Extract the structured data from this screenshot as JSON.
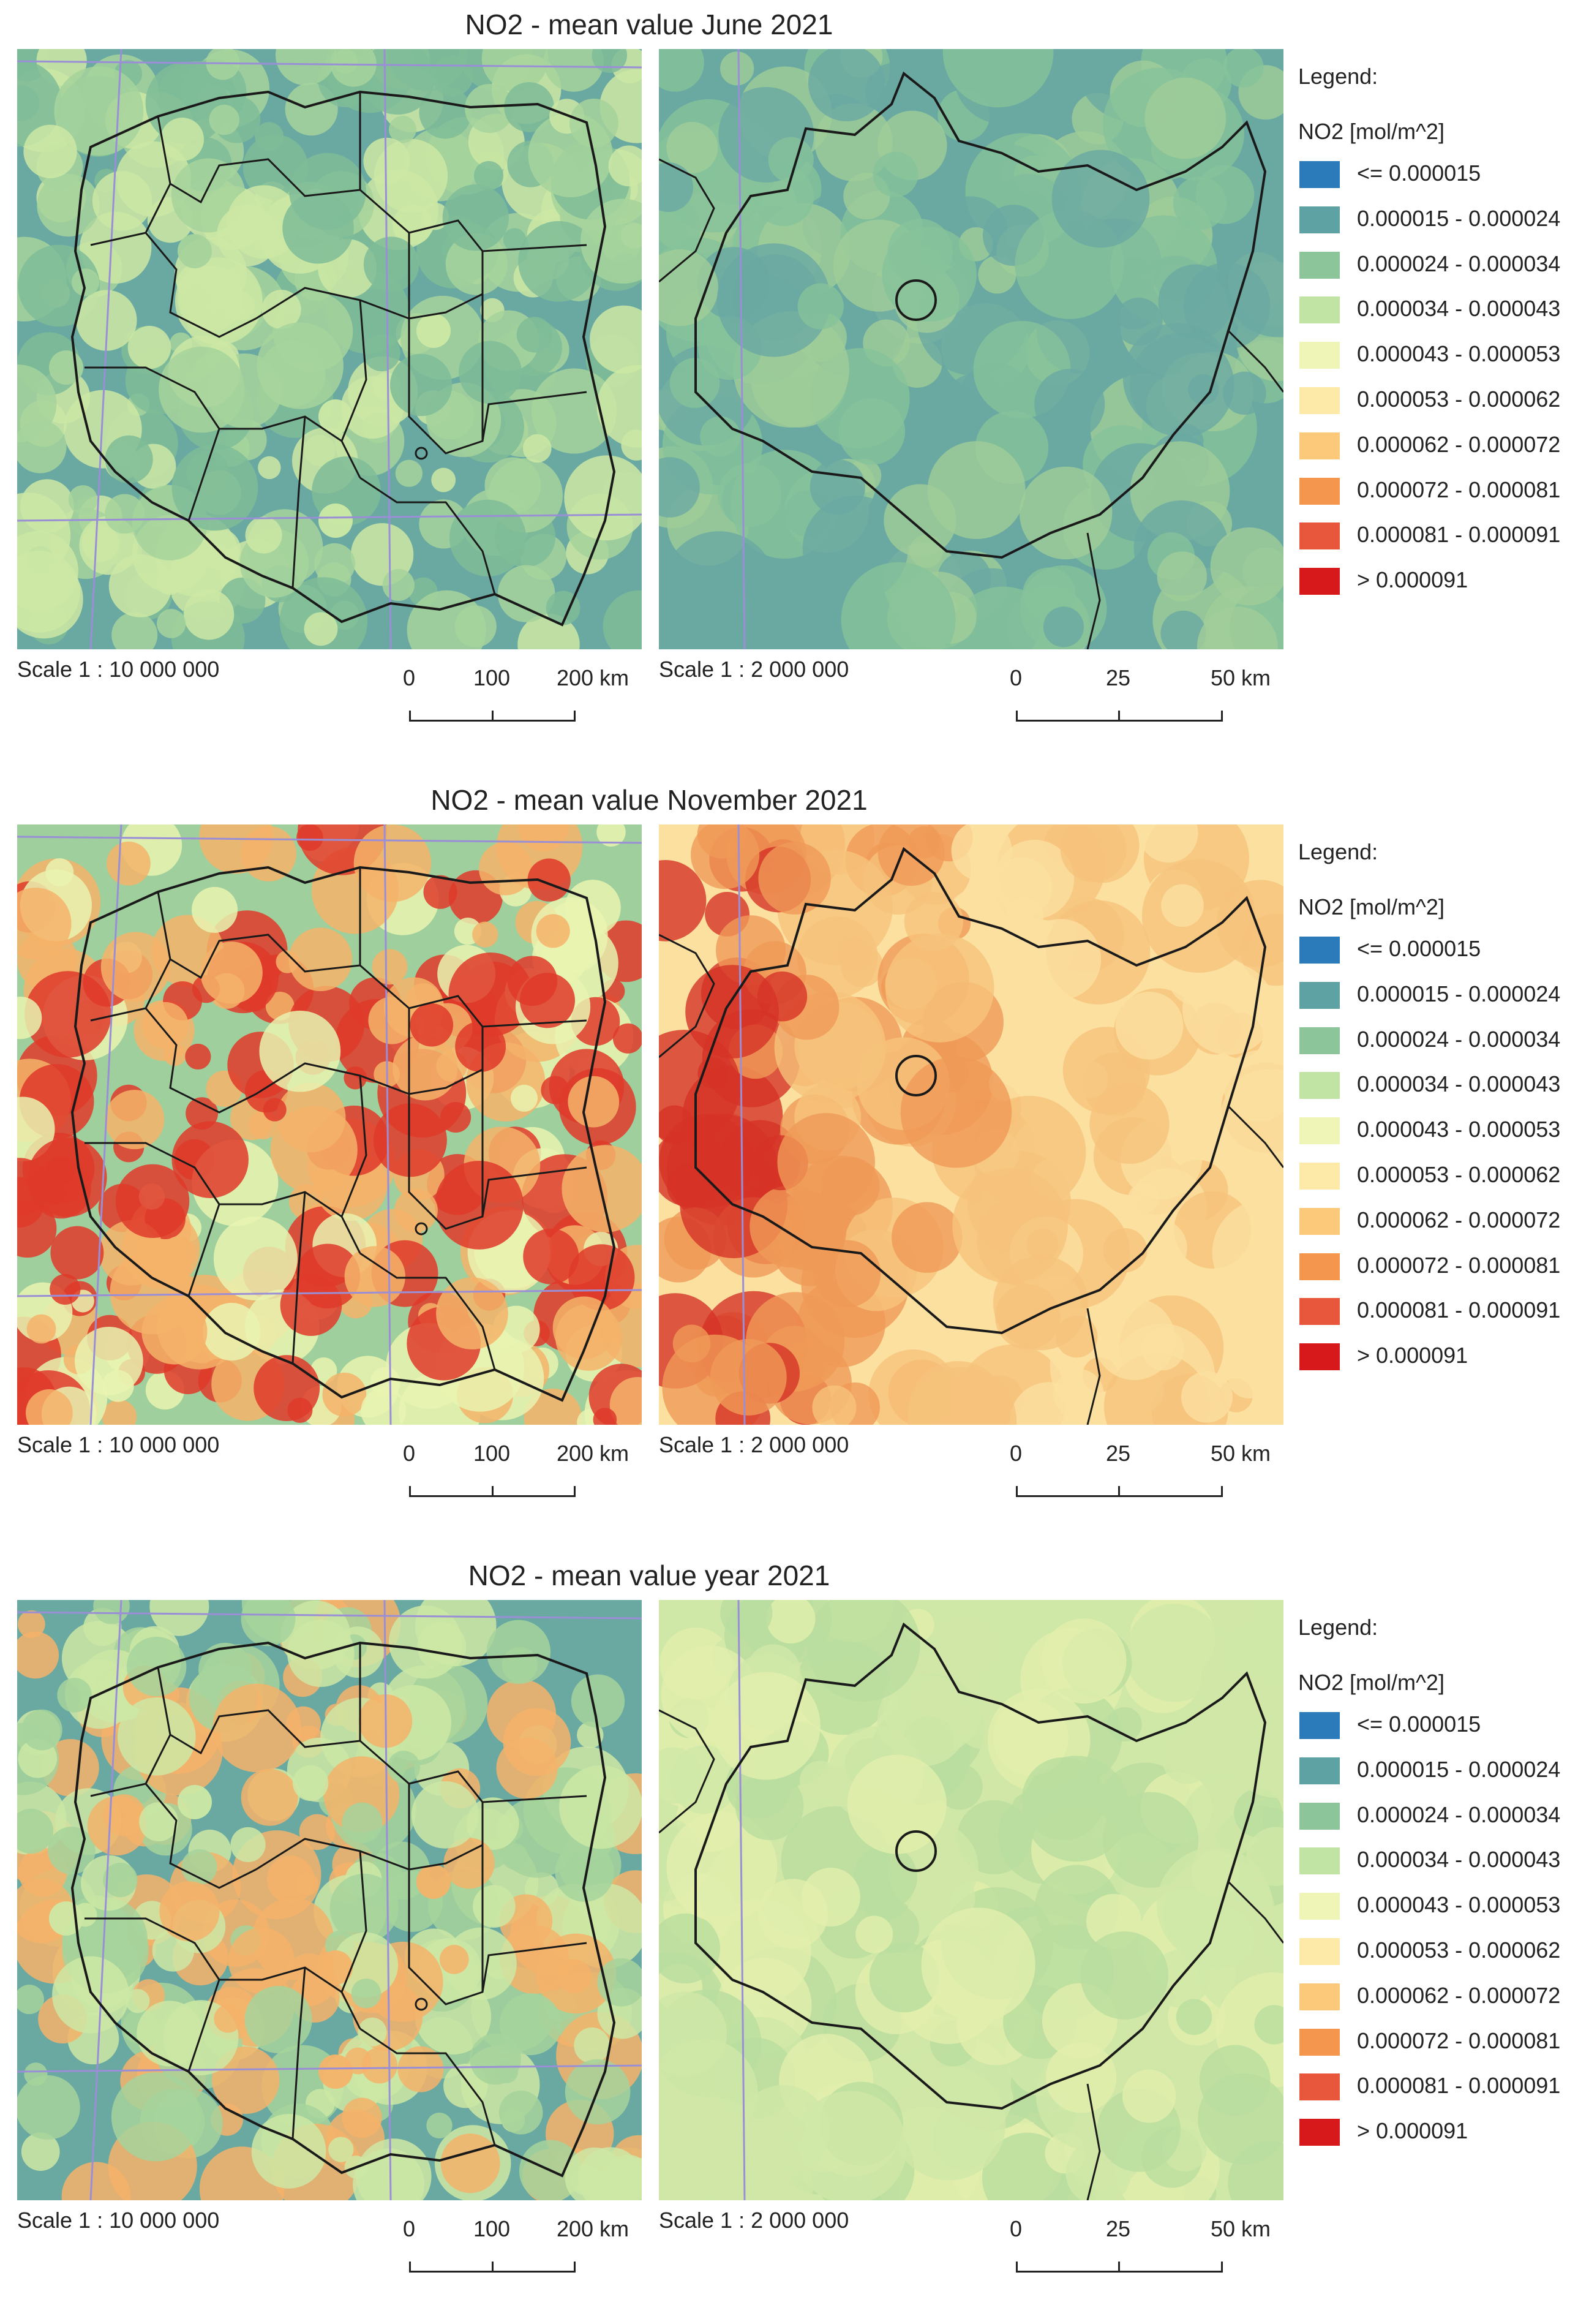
{
  "panels": [
    {
      "title": "NO2 - mean value June 2021",
      "scale_left": "Scale 1 : 10 000 000",
      "scale_right": "Scale 1 : 2 000 000",
      "bar_left_ticks": [
        "0",
        "100",
        "200 km"
      ],
      "bar_right_ticks": [
        "0",
        "25",
        "50 km"
      ],
      "palette_left": [
        "#6aa9a2",
        "#7fbc98",
        "#a6d39c",
        "#cce8a4"
      ],
      "palette_right": [
        "#6aa9a2",
        "#86c29a",
        "#a0cd99"
      ]
    },
    {
      "title": "NO2 - mean value November 2021",
      "scale_left": "Scale 1 : 10 000 000",
      "scale_right": "Scale 1 : 2 000 000",
      "bar_left_ticks": [
        "0",
        "100",
        "200 km"
      ],
      "bar_right_ticks": [
        "0",
        "25",
        "50 km"
      ],
      "palette_left": [
        "#9fcf9c",
        "#e9f3b0",
        "#f4b36a",
        "#df3a2a"
      ],
      "palette_right": [
        "#fbe0a0",
        "#f6c37c",
        "#f09a58",
        "#d63327"
      ]
    },
    {
      "title": "NO2 - mean value year 2021",
      "scale_left": "Scale 1 : 10 000 000",
      "scale_right": "Scale 1 : 2 000 000",
      "bar_left_ticks": [
        "0",
        "100",
        "200 km"
      ],
      "bar_right_ticks": [
        "0",
        "25",
        "50 km"
      ],
      "palette_left": [
        "#6aa9a2",
        "#a6d39c",
        "#cce8a4",
        "#f4b36a"
      ],
      "palette_right": [
        "#cfe7a7",
        "#e2efad",
        "#b9dd9f"
      ]
    }
  ],
  "legend": {
    "title": "Legend:",
    "unit": "NO2 [mol/m^2]",
    "items": [
      {
        "label": "<= 0.000015",
        "color": "#2b7bba"
      },
      {
        "label": "0.000015 - 0.000024",
        "color": "#5fa2a3"
      },
      {
        "label": "0.000024 - 0.000034",
        "color": "#8cc59a"
      },
      {
        "label": "0.000034 - 0.000043",
        "color": "#c1e3a4"
      },
      {
        "label": "0.000043 - 0.000053",
        "color": "#eef5b6"
      },
      {
        "label": "0.000053 - 0.000062",
        "color": "#fde9a8"
      },
      {
        "label": "0.000062 - 0.000072",
        "color": "#fcc87a"
      },
      {
        "label": "0.000072 - 0.000081",
        "color": "#f5964f"
      },
      {
        "label": "0.000081 - 0.000091",
        "color": "#e8573c"
      },
      {
        "label": "> 0.000091",
        "color": "#d7191c"
      }
    ]
  }
}
